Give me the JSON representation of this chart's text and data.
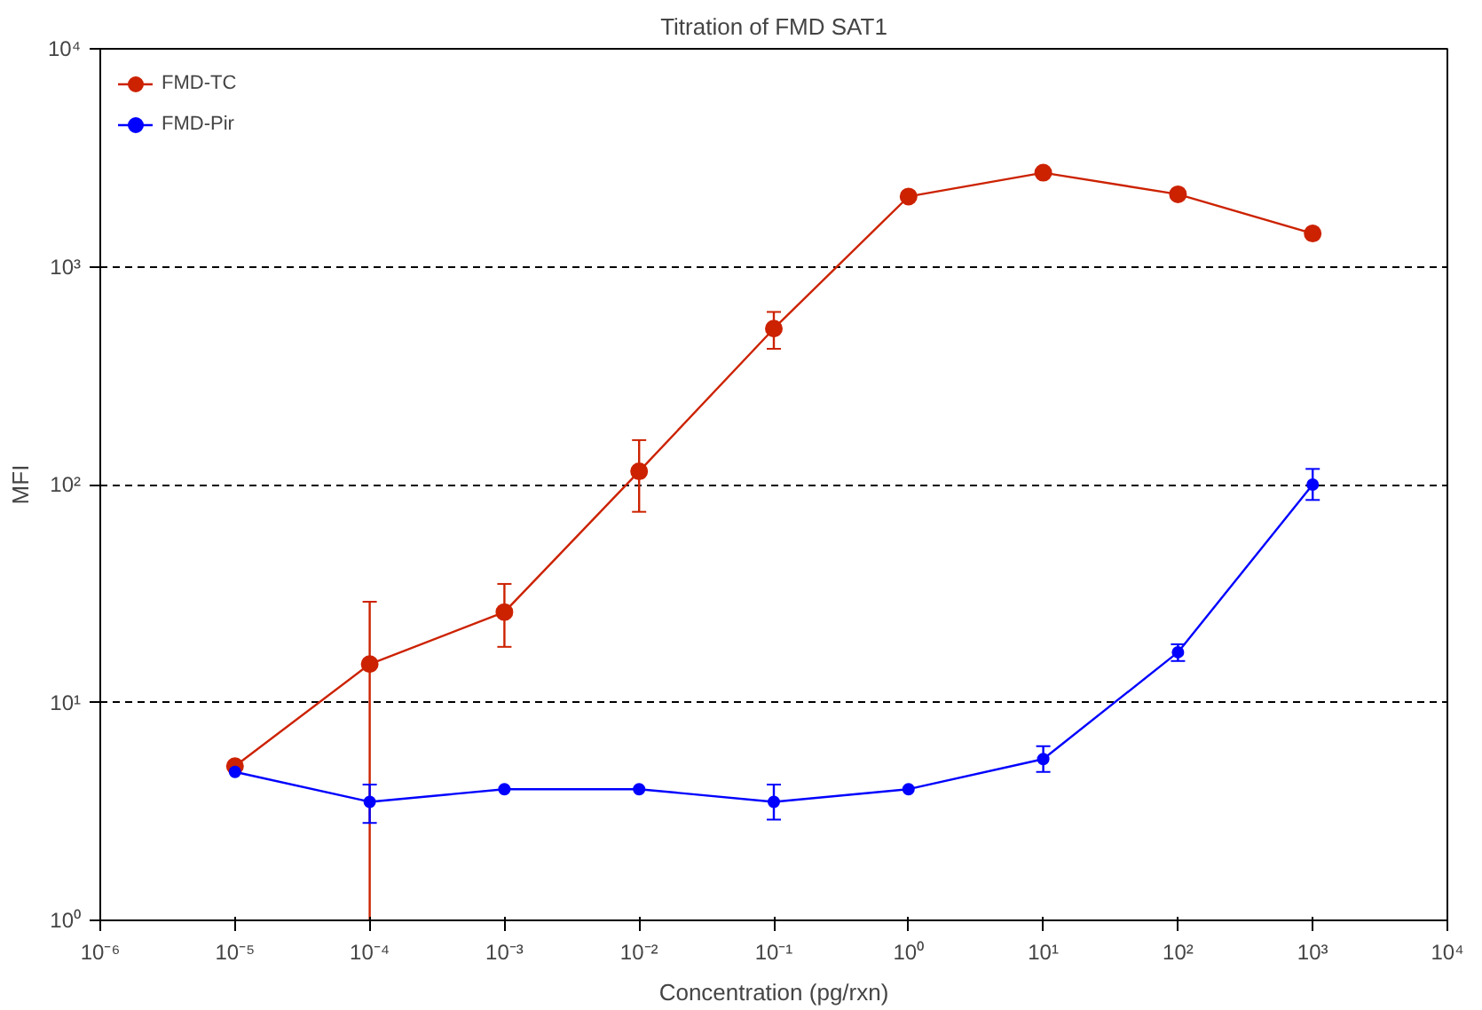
{
  "chart_data": {
    "type": "line",
    "title": "Titration of FMD SAT1",
    "xlabel": "Concentration (pg/rxn)",
    "ylabel": "MFI",
    "x": [
      1e-05,
      0.0001,
      0.001,
      0.01,
      0.1,
      1,
      10,
      100,
      1000
    ],
    "series": [
      {
        "name": "FMD-TC",
        "color": "#cc2200",
        "values": [
          5.1,
          15,
          26,
          115,
          520,
          2100,
          2700,
          2150,
          1420
        ],
        "errors": [
          null,
          [
            1,
            29
          ],
          [
            18,
            35
          ],
          [
            75,
            160
          ],
          [
            420,
            620
          ],
          null,
          null,
          null,
          null
        ]
      },
      {
        "name": "FMD-Pir",
        "color": "#0000ff",
        "values": [
          4.8,
          3.5,
          4.0,
          4.0,
          3.5,
          4.0,
          5.5,
          17,
          100
        ],
        "errors": [
          null,
          [
            2.8,
            4.2
          ],
          null,
          null,
          [
            2.9,
            4.2
          ],
          null,
          [
            4.8,
            6.3
          ],
          [
            15.5,
            18.5
          ],
          [
            85,
            118
          ]
        ]
      }
    ],
    "log": "xy",
    "xlim": [
      1e-06,
      10000
    ],
    "ylim": [
      1,
      10000
    ],
    "xticks": [
      {
        "value": 1e-06,
        "label": "10⁻⁶"
      },
      {
        "value": 1e-05,
        "label": "10⁻⁵"
      },
      {
        "value": 0.0001,
        "label": "10⁻⁴"
      },
      {
        "value": 0.001,
        "label": "10⁻³"
      },
      {
        "value": 0.01,
        "label": "10⁻²"
      },
      {
        "value": 0.1,
        "label": "10⁻¹"
      },
      {
        "value": 1,
        "label": "10⁰"
      },
      {
        "value": 10,
        "label": "10¹"
      },
      {
        "value": 100,
        "label": "10²"
      },
      {
        "value": 1000,
        "label": "10³"
      },
      {
        "value": 10000,
        "label": "10⁴"
      }
    ],
    "yticks": [
      {
        "value": 1,
        "label": "10⁰"
      },
      {
        "value": 10,
        "label": "10¹"
      },
      {
        "value": 100,
        "label": "10²"
      },
      {
        "value": 1000,
        "label": "10³"
      },
      {
        "value": 10000,
        "label": "10⁴"
      }
    ],
    "grid": "y",
    "legend": "top left",
    "marker": "circle",
    "line_style": "solid"
  }
}
